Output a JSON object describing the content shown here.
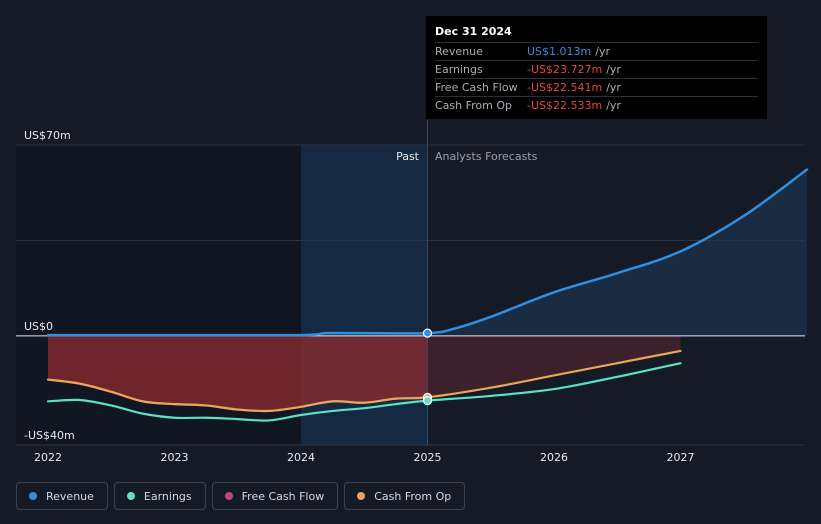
{
  "tooltip": {
    "date": "Dec 31 2024",
    "rows": [
      {
        "label": "Revenue",
        "value": "US$1.013m",
        "unit": "/yr",
        "color": "#2f8fe0"
      },
      {
        "label": "Earnings",
        "value": "-US$23.727m",
        "unit": "/yr",
        "color": "#e64444"
      },
      {
        "label": "Free Cash Flow",
        "value": "-US$22.541m",
        "unit": "/yr",
        "color": "#e64444"
      },
      {
        "label": "Cash From Op",
        "value": "-US$22.533m",
        "unit": "/yr",
        "color": "#e64444"
      }
    ]
  },
  "region_labels": {
    "past": "Past",
    "forecast": "Analysts Forecasts"
  },
  "legend": [
    {
      "label": "Revenue",
      "color": "#2f8fe0"
    },
    {
      "label": "Earnings",
      "color": "#5ee0c6"
    },
    {
      "label": "Free Cash Flow",
      "color": "#c0457a"
    },
    {
      "label": "Cash From Op",
      "color": "#e8a65a"
    }
  ],
  "chart_data": {
    "type": "line",
    "ylim": [
      -40,
      70
    ],
    "y_tick_labels": [
      {
        "value": 70,
        "label": "US$70m"
      },
      {
        "value": 0,
        "label": "US$0"
      },
      {
        "value": -40,
        "label": "-US$40m"
      }
    ],
    "x_ticks": [
      2022,
      2023,
      2024,
      2025,
      2026,
      2027
    ],
    "xlim": [
      2021.75,
      2028.0
    ],
    "past_end": 2025.0,
    "highlight_start": 2024.0,
    "highlight_point_x": 2025.0,
    "series": [
      {
        "name": "Revenue",
        "color": "#2f8fe0",
        "points": [
          [
            2022.0,
            0.3
          ],
          [
            2023.0,
            0.3
          ],
          [
            2024.0,
            0.3
          ],
          [
            2024.2,
            1.0
          ],
          [
            2024.5,
            1.0
          ],
          [
            2025.0,
            1.013
          ],
          [
            2025.2,
            2.5
          ],
          [
            2025.5,
            7.0
          ],
          [
            2026.0,
            16.0
          ],
          [
            2026.5,
            23.0
          ],
          [
            2027.0,
            31.0
          ],
          [
            2027.5,
            44.0
          ],
          [
            2028.0,
            61.0
          ]
        ]
      },
      {
        "name": "Earnings",
        "color": "#5ee0c6",
        "points": [
          [
            2022.0,
            -24.0
          ],
          [
            2022.25,
            -23.5
          ],
          [
            2022.5,
            -25.5
          ],
          [
            2022.75,
            -28.5
          ],
          [
            2023.0,
            -30.0
          ],
          [
            2023.25,
            -30.0
          ],
          [
            2023.5,
            -30.5
          ],
          [
            2023.75,
            -31.0
          ],
          [
            2024.0,
            -29.0
          ],
          [
            2024.25,
            -27.5
          ],
          [
            2024.5,
            -26.5
          ],
          [
            2024.75,
            -25.0
          ],
          [
            2025.0,
            -23.727
          ],
          [
            2025.5,
            -22.0
          ],
          [
            2026.0,
            -19.5
          ],
          [
            2026.5,
            -15.0
          ],
          [
            2027.0,
            -10.0
          ]
        ]
      },
      {
        "name": "Free Cash Flow",
        "color": "#c0457a",
        "points": [
          [
            2022.0,
            -16.0
          ],
          [
            2022.25,
            -17.5
          ],
          [
            2022.5,
            -20.5
          ],
          [
            2022.75,
            -24.0
          ],
          [
            2023.0,
            -25.0
          ],
          [
            2023.25,
            -25.5
          ],
          [
            2023.5,
            -27.0
          ],
          [
            2023.75,
            -27.5
          ],
          [
            2024.0,
            -26.0
          ],
          [
            2024.25,
            -24.0
          ],
          [
            2024.5,
            -24.5
          ],
          [
            2024.75,
            -23.0
          ],
          [
            2025.0,
            -22.541
          ]
        ]
      },
      {
        "name": "Cash From Op",
        "color": "#e8a65a",
        "points": [
          [
            2022.0,
            -16.0
          ],
          [
            2022.25,
            -17.5
          ],
          [
            2022.5,
            -20.5
          ],
          [
            2022.75,
            -24.0
          ],
          [
            2023.0,
            -25.0
          ],
          [
            2023.25,
            -25.5
          ],
          [
            2023.5,
            -27.0
          ],
          [
            2023.75,
            -27.5
          ],
          [
            2024.0,
            -26.0
          ],
          [
            2024.25,
            -24.0
          ],
          [
            2024.5,
            -24.5
          ],
          [
            2024.75,
            -23.0
          ],
          [
            2025.0,
            -22.533
          ],
          [
            2025.5,
            -19.0
          ],
          [
            2026.0,
            -14.5
          ],
          [
            2026.5,
            -10.0
          ],
          [
            2027.0,
            -5.5
          ]
        ]
      }
    ]
  }
}
